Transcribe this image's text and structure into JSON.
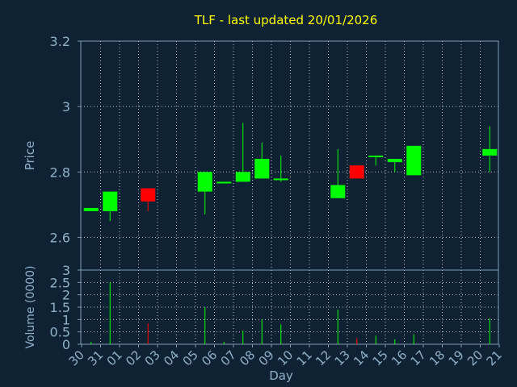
{
  "chart_data": {
    "type": "candlestick",
    "title": "TLF - last updated 20/01/2026",
    "xlabel": "Day",
    "price": {
      "ylabel": "Price",
      "ylim": [
        2.5,
        3.2
      ],
      "yticks": [
        "2.6",
        "2.8",
        "3",
        "3.2"
      ],
      "ytick_values": [
        2.6,
        2.8,
        3.0,
        3.2
      ]
    },
    "volume": {
      "ylabel": "Volume (0000)",
      "ylim": [
        0,
        3
      ],
      "yticks": [
        "0",
        "0.5",
        "1",
        "1.5",
        "2",
        "2.5",
        "3"
      ],
      "ytick_values": [
        0,
        0.5,
        1,
        1.5,
        2,
        2.5,
        3
      ]
    },
    "days": [
      "30",
      "31",
      "01",
      "02",
      "03",
      "04",
      "05",
      "06",
      "07",
      "08",
      "09",
      "10",
      "11",
      "12",
      "13",
      "14",
      "15",
      "16",
      "17",
      "18",
      "19",
      "20",
      "21"
    ],
    "candles": [
      {
        "day": "30",
        "open": 2.68,
        "high": 2.69,
        "low": 2.68,
        "close": 2.69,
        "volume": 0.1
      },
      {
        "day": "31",
        "open": 2.68,
        "high": 2.74,
        "low": 2.65,
        "close": 2.74,
        "volume": 2.5
      },
      {
        "day": "02",
        "open": 2.75,
        "high": 2.75,
        "low": 2.68,
        "close": 2.71,
        "volume": 0.85
      },
      {
        "day": "05",
        "open": 2.74,
        "high": 2.8,
        "low": 2.67,
        "close": 2.8,
        "volume": 1.5
      },
      {
        "day": "06",
        "open": 2.765,
        "high": 2.77,
        "low": 2.765,
        "close": 2.77,
        "volume": 0.1
      },
      {
        "day": "07",
        "open": 2.77,
        "high": 2.95,
        "low": 2.77,
        "close": 2.8,
        "volume": 0.55
      },
      {
        "day": "08",
        "open": 2.78,
        "high": 2.89,
        "low": 2.78,
        "close": 2.84,
        "volume": 1.0
      },
      {
        "day": "09",
        "open": 2.775,
        "high": 2.85,
        "low": 2.77,
        "close": 2.78,
        "volume": 0.8
      },
      {
        "day": "12",
        "open": 2.72,
        "high": 2.87,
        "low": 2.72,
        "close": 2.76,
        "volume": 1.4
      },
      {
        "day": "13",
        "open": 2.82,
        "high": 2.82,
        "low": 2.78,
        "close": 2.78,
        "volume": 0.25
      },
      {
        "day": "14",
        "open": 2.845,
        "high": 2.85,
        "low": 2.82,
        "close": 2.85,
        "volume": 0.35
      },
      {
        "day": "15",
        "open": 2.83,
        "high": 2.84,
        "low": 2.8,
        "close": 2.84,
        "volume": 0.2
      },
      {
        "day": "16",
        "open": 2.79,
        "high": 2.88,
        "low": 2.79,
        "close": 2.88,
        "volume": 0.4
      },
      {
        "day": "20",
        "open": 2.85,
        "high": 2.94,
        "low": 2.8,
        "close": 2.87,
        "volume": 1.05
      }
    ],
    "colors": {
      "background": "#0f2234",
      "up": "#00ff00",
      "down": "#ff0000",
      "title": "#ffff00",
      "axis_text": "#8fb0c8",
      "frame": "#7d9cb4",
      "grid": "#c0c8d0"
    },
    "grid": true
  }
}
